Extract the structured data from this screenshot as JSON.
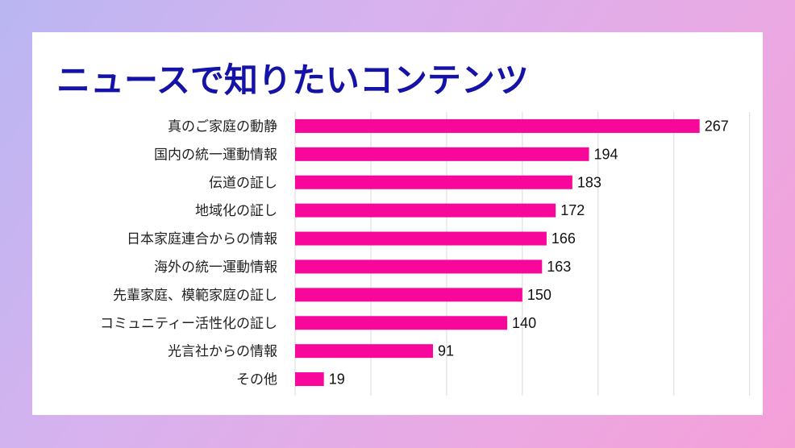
{
  "chart_data": {
    "type": "bar",
    "orientation": "horizontal",
    "title": "ニュースで知りたいコンテンツ",
    "categories": [
      "真のご家庭の動静",
      "国内の統一運動情報",
      "伝道の証し",
      "地域化の証し",
      "日本家庭連合からの情報",
      "海外の統一運動情報",
      "先輩家庭、模範家庭の証し",
      "コミュニティー活性化の証し",
      "光言社からの情報",
      "その他"
    ],
    "values": [
      267,
      194,
      183,
      172,
      166,
      163,
      150,
      140,
      91,
      19
    ],
    "xlabel": "",
    "ylabel": "",
    "xlim": [
      0,
      300
    ],
    "grid": true,
    "legend": "none",
    "bar_color": "#f7089b"
  }
}
